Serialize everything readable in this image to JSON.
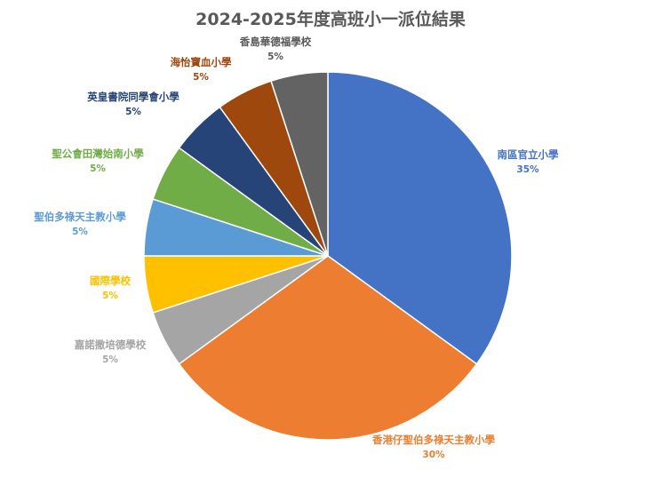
{
  "chart_data": {
    "type": "pie",
    "title": "2024-2025年度高班小一派位結果",
    "slices": [
      {
        "label": "南區官立小學",
        "value": 35,
        "value_label": "35%",
        "color": "#4472C4"
      },
      {
        "label": "香港仔聖伯多祿天主教小學",
        "value": 30,
        "value_label": "30%",
        "color": "#ED7D31"
      },
      {
        "label": "嘉諾撒培德學校",
        "value": 5,
        "value_label": "5%",
        "color": "#A5A5A5"
      },
      {
        "label": "國際學校",
        "value": 5,
        "value_label": "5%",
        "color": "#FFC000"
      },
      {
        "label": "聖伯多祿天主教小學",
        "value": 5,
        "value_label": "5%",
        "color": "#5B9BD5"
      },
      {
        "label": "聖公會田灣始南小學",
        "value": 5,
        "value_label": "5%",
        "color": "#70AD47"
      },
      {
        "label": "英皇書院同學會小學",
        "value": 5,
        "value_label": "5%",
        "color": "#264478"
      },
      {
        "label": "海怡寶血小學",
        "value": 5,
        "value_label": "5%",
        "color": "#9E480E"
      },
      {
        "label": "香島華德福學校",
        "value": 5,
        "value_label": "5%",
        "color": "#636363"
      }
    ],
    "label_colors": [
      "#4472C4",
      "#ED7D31",
      "#A5A5A5",
      "#FFC000",
      "#5B9BD5",
      "#70AD47",
      "#264478",
      "#9E480E",
      "#595959"
    ]
  }
}
